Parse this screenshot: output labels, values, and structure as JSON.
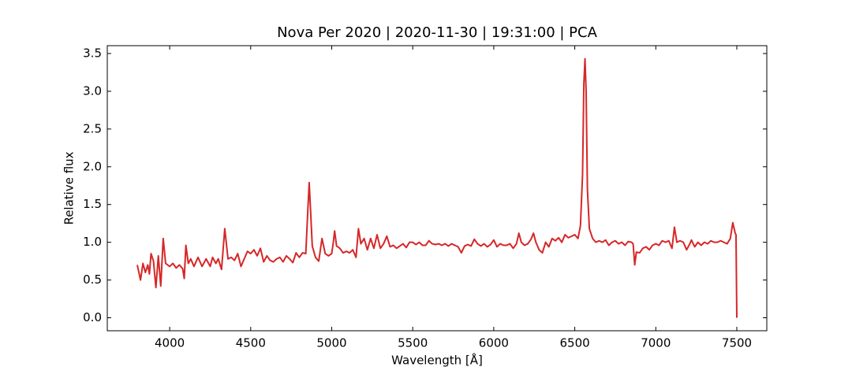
{
  "chart_data": {
    "type": "line",
    "title": "Nova Per 2020 | 2020-11-30 | 19:31:00 | PCA",
    "x_label": "Wavelength [Å]",
    "y_label": "Relative flux",
    "color": "#d62728",
    "xlim": [
      3615,
      7685
    ],
    "ylim": [
      -0.172,
      3.604
    ],
    "xticks": [
      4000,
      4500,
      5000,
      5500,
      6000,
      6500,
      7000,
      7500
    ],
    "yticks": [
      {
        "value": 0,
        "label": "0.0"
      },
      0.5,
      {
        "value": 1,
        "label": "1.0"
      },
      1.5,
      {
        "value": 2,
        "label": "2.0"
      },
      2.5,
      {
        "value": 3,
        "label": "3.0"
      },
      3.5
    ],
    "x": [
      3800,
      3820,
      3835,
      3850,
      3865,
      3875,
      3885,
      3900,
      3915,
      3930,
      3945,
      3960,
      3975,
      4000,
      4020,
      4040,
      4060,
      4080,
      4090,
      4100,
      4115,
      4130,
      4150,
      4175,
      4200,
      4225,
      4250,
      4265,
      4285,
      4300,
      4320,
      4340,
      4360,
      4380,
      4400,
      4420,
      4440,
      4460,
      4480,
      4500,
      4520,
      4540,
      4560,
      4580,
      4600,
      4620,
      4640,
      4660,
      4680,
      4700,
      4720,
      4740,
      4760,
      4780,
      4800,
      4820,
      4840,
      4852,
      4861,
      4870,
      4880,
      4900,
      4920,
      4940,
      4960,
      4980,
      5000,
      5010,
      5018,
      5030,
      5050,
      5070,
      5090,
      5110,
      5130,
      5150,
      5165,
      5180,
      5200,
      5220,
      5240,
      5260,
      5280,
      5300,
      5320,
      5340,
      5360,
      5380,
      5400,
      5420,
      5440,
      5460,
      5480,
      5500,
      5520,
      5540,
      5560,
      5580,
      5600,
      5620,
      5640,
      5660,
      5680,
      5700,
      5720,
      5740,
      5760,
      5780,
      5800,
      5820,
      5840,
      5860,
      5880,
      5900,
      5920,
      5940,
      5960,
      5980,
      6000,
      6020,
      6040,
      6060,
      6080,
      6100,
      6120,
      6140,
      6155,
      6170,
      6190,
      6210,
      6230,
      6245,
      6260,
      6280,
      6300,
      6320,
      6340,
      6360,
      6380,
      6400,
      6420,
      6440,
      6460,
      6480,
      6500,
      6520,
      6535,
      6548,
      6556,
      6563,
      6570,
      6578,
      6590,
      6610,
      6630,
      6650,
      6670,
      6690,
      6710,
      6730,
      6750,
      6770,
      6790,
      6810,
      6830,
      6850,
      6860,
      6870,
      6880,
      6900,
      6920,
      6940,
      6960,
      6980,
      7000,
      7020,
      7040,
      7060,
      7080,
      7100,
      7115,
      7130,
      7150,
      7170,
      7190,
      7210,
      7220,
      7240,
      7260,
      7280,
      7300,
      7320,
      7340,
      7360,
      7380,
      7400,
      7420,
      7440,
      7460,
      7475,
      7490,
      7495,
      7500
    ],
    "values": [
      0.7,
      0.5,
      0.72,
      0.6,
      0.7,
      0.58,
      0.85,
      0.75,
      0.4,
      0.82,
      0.42,
      1.05,
      0.72,
      0.68,
      0.72,
      0.66,
      0.7,
      0.65,
      0.52,
      0.96,
      0.72,
      0.78,
      0.68,
      0.8,
      0.68,
      0.78,
      0.68,
      0.8,
      0.72,
      0.78,
      0.64,
      1.18,
      0.78,
      0.8,
      0.76,
      0.85,
      0.68,
      0.78,
      0.88,
      0.85,
      0.9,
      0.82,
      0.92,
      0.74,
      0.82,
      0.76,
      0.74,
      0.78,
      0.8,
      0.74,
      0.82,
      0.78,
      0.73,
      0.86,
      0.8,
      0.86,
      0.85,
      1.4,
      1.79,
      1.4,
      0.95,
      0.8,
      0.75,
      1.05,
      0.85,
      0.82,
      0.85,
      1.0,
      1.15,
      0.95,
      0.92,
      0.86,
      0.88,
      0.86,
      0.9,
      0.8,
      1.18,
      0.98,
      1.05,
      0.9,
      1.05,
      0.92,
      1.1,
      0.92,
      0.98,
      1.08,
      0.94,
      0.96,
      0.92,
      0.95,
      0.98,
      0.93,
      1.0,
      1.0,
      0.97,
      1.0,
      0.96,
      0.96,
      1.02,
      0.98,
      0.97,
      0.98,
      0.96,
      0.98,
      0.95,
      0.98,
      0.96,
      0.94,
      0.86,
      0.95,
      0.97,
      0.95,
      1.04,
      0.98,
      0.95,
      0.98,
      0.94,
      0.97,
      1.03,
      0.94,
      0.98,
      0.96,
      0.96,
      0.98,
      0.92,
      0.98,
      1.12,
      1.0,
      0.96,
      0.98,
      1.04,
      1.12,
      1.0,
      0.9,
      0.86,
      1.0,
      0.94,
      1.05,
      1.02,
      1.06,
      1.0,
      1.1,
      1.06,
      1.08,
      1.1,
      1.05,
      1.22,
      1.9,
      3.1,
      3.43,
      3.0,
      1.7,
      1.18,
      1.05,
      1.0,
      1.02,
      1.0,
      1.03,
      0.96,
      1.0,
      1.02,
      0.98,
      1.0,
      0.96,
      1.01,
      1.0,
      0.98,
      0.7,
      0.87,
      0.86,
      0.92,
      0.94,
      0.9,
      0.96,
      0.98,
      0.96,
      1.02,
      1.0,
      1.02,
      0.92,
      1.2,
      1.0,
      1.02,
      1.0,
      0.9,
      0.98,
      1.03,
      0.94,
      1.0,
      0.96,
      1.0,
      0.98,
      1.02,
      1.0,
      1.0,
      1.02,
      1.0,
      0.98,
      1.05,
      1.26,
      1.12,
      1.1,
      0.0
    ]
  }
}
